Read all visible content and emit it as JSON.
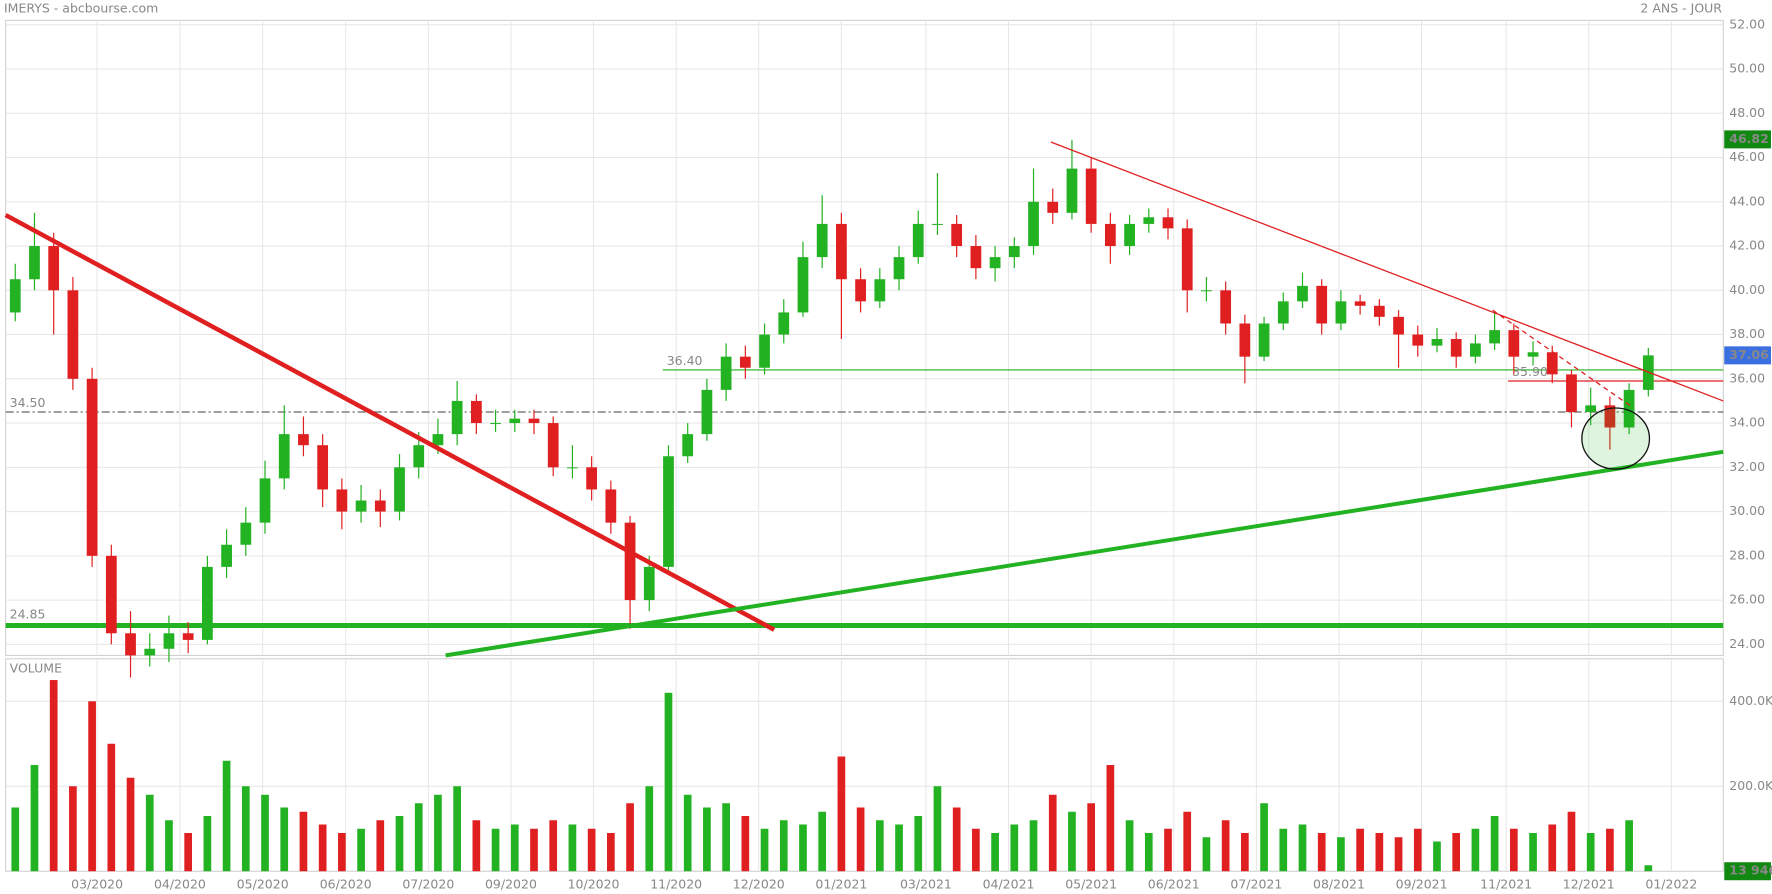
{
  "chart_data": {
    "type": "candlestick",
    "title": "IMERYS - abcbourse.com",
    "subtitle": "2 ANS - JOUR",
    "up_color": "#22b222",
    "down_color": "#e02020",
    "open": [
      39,
      40.5,
      42,
      40,
      36,
      28,
      24.5,
      23.5,
      23.8,
      24.5,
      24.2,
      27.5,
      28.5,
      29.5,
      31.5,
      33.5,
      33,
      31,
      30,
      30.5,
      30,
      32,
      33,
      33.5,
      35,
      34,
      34,
      34.2,
      34,
      32,
      32,
      31,
      29.5,
      26,
      27.5,
      32.5,
      33.5,
      35.5,
      37,
      36.5,
      38,
      39,
      41.5,
      43,
      40.5,
      39.5,
      40.5,
      41.5,
      43,
      43,
      42,
      41,
      41.5,
      42,
      44,
      43.5,
      45.5,
      43,
      42,
      43,
      43.3,
      42.8,
      40,
      40,
      38.5,
      37,
      38.5,
      39.5,
      40.2,
      38.5,
      39.5,
      39.3,
      38.8,
      38,
      37.5,
      37.8,
      37,
      37.6,
      38.2,
      37,
      37.2,
      36.2,
      34.5,
      34.8,
      33.8,
      35.5
    ],
    "high": [
      41.2,
      43.5,
      42.6,
      40.6,
      36.5,
      28.5,
      25.5,
      24.5,
      25.3,
      25,
      28,
      29.2,
      30.2,
      32.3,
      34.8,
      34.3,
      33.5,
      31.5,
      31.2,
      31,
      32.6,
      33.6,
      34.2,
      35.9,
      35.3,
      34.6,
      34.6,
      34.6,
      34.3,
      33,
      32.5,
      31.4,
      29.8,
      28,
      33,
      34,
      36,
      37.6,
      37.5,
      38.5,
      39.6,
      42.2,
      44.3,
      43.5,
      41,
      41,
      42,
      43.6,
      45.3,
      43.4,
      42.5,
      42,
      42.4,
      45.5,
      44.6,
      46.8,
      46,
      43.5,
      43.4,
      43.7,
      43.7,
      43.2,
      40.6,
      40.4,
      38.9,
      38.8,
      39.9,
      40.8,
      40.5,
      40,
      39.8,
      39.6,
      39.1,
      38.4,
      38.3,
      38.1,
      38,
      39,
      38.5,
      37.7,
      37.5,
      36.4,
      35.6,
      35.2,
      35.8,
      37.4
    ],
    "low": [
      38.6,
      40,
      38,
      35.5,
      27.5,
      24,
      22.5,
      23,
      23.2,
      23.6,
      24,
      27,
      28,
      29,
      31,
      32.5,
      30.2,
      29.2,
      29.5,
      29.3,
      29.6,
      31.5,
      32.6,
      33,
      33.5,
      33.6,
      33.6,
      33.5,
      31.6,
      31.5,
      30.5,
      29,
      24.7,
      25.5,
      27.3,
      32.2,
      33.2,
      35,
      36,
      36.2,
      37.6,
      38.8,
      41,
      37.8,
      39,
      39.2,
      40,
      41.2,
      42.5,
      41.5,
      40.5,
      40.4,
      41,
      41.6,
      43,
      43.2,
      42.6,
      41.2,
      41.6,
      42.6,
      42.3,
      39,
      39.5,
      38,
      35.8,
      36.8,
      38.2,
      39.2,
      38,
      38.2,
      38.9,
      38.4,
      36.5,
      37,
      37.2,
      36.5,
      36.7,
      37.3,
      36.2,
      36.6,
      35.8,
      33.8,
      33.9,
      32.8,
      33.5,
      35.2
    ],
    "close": [
      40.5,
      42,
      40,
      36,
      28,
      24.5,
      23.5,
      23.8,
      24.5,
      24.2,
      27.5,
      28.5,
      29.5,
      31.5,
      33.5,
      33,
      31,
      30,
      30.5,
      30,
      32,
      33,
      33.5,
      35,
      34,
      34,
      34.2,
      34,
      32,
      32,
      31,
      29.5,
      26,
      27.5,
      32.5,
      33.5,
      35.5,
      37,
      36.5,
      38,
      39,
      41.5,
      43,
      40.5,
      39.5,
      40.5,
      41.5,
      43,
      43,
      42,
      41,
      41.5,
      42,
      44,
      43.5,
      45.5,
      43,
      42,
      43,
      43.3,
      42.8,
      40,
      40,
      38.5,
      37,
      38.5,
      39.5,
      40.2,
      38.5,
      39.5,
      39.3,
      38.8,
      38,
      37.5,
      37.8,
      37,
      37.6,
      38.2,
      37,
      37.2,
      36.2,
      34.5,
      34.8,
      33.8,
      35.5,
      37.06
    ],
    "xlim": [
      -0.5,
      88.9
    ],
    "xticks": [
      {
        "value": 4.26,
        "label": "03/2020"
      },
      {
        "value": 8.57,
        "label": "04/2020"
      },
      {
        "value": 12.88,
        "label": "05/2020"
      },
      {
        "value": 17.2,
        "label": "06/2020"
      },
      {
        "value": 21.5,
        "label": "07/2020"
      },
      {
        "value": 25.8,
        "label": "09/2020"
      },
      {
        "value": 30.1,
        "label": "10/2020"
      },
      {
        "value": 34.4,
        "label": "11/2020"
      },
      {
        "value": 38.7,
        "label": "12/2020"
      },
      {
        "value": 43.0,
        "label": "01/2021"
      },
      {
        "value": 47.4,
        "label": "03/2021"
      },
      {
        "value": 51.7,
        "label": "04/2021"
      },
      {
        "value": 56.0,
        "label": "05/2021"
      },
      {
        "value": 60.3,
        "label": "06/2021"
      },
      {
        "value": 64.6,
        "label": "07/2021"
      },
      {
        "value": 68.9,
        "label": "08/2021"
      },
      {
        "value": 73.2,
        "label": "09/2021"
      },
      {
        "value": 77.6,
        "label": "11/2021"
      },
      {
        "value": 81.9,
        "label": "12/2021"
      },
      {
        "value": 86.2,
        "label": "01/2022"
      }
    ],
    "ylim": [
      23.5,
      52.2
    ],
    "yticks": [
      {
        "value": 24,
        "label": "24.00"
      },
      {
        "value": 26,
        "label": "26.00"
      },
      {
        "value": 28,
        "label": "28.00"
      },
      {
        "value": 30,
        "label": "30.00"
      },
      {
        "value": 32,
        "label": "32.00"
      },
      {
        "value": 34,
        "label": "34.00"
      },
      {
        "value": 36,
        "label": "36.00"
      },
      {
        "value": 38,
        "label": "38.00"
      },
      {
        "value": 40,
        "label": "40.00"
      },
      {
        "value": 42,
        "label": "42.00"
      },
      {
        "value": 44,
        "label": "44.00"
      },
      {
        "value": 46,
        "label": "46.00"
      },
      {
        "value": 48,
        "label": "48.00"
      },
      {
        "value": 50,
        "label": "50.00"
      },
      {
        "value": 52,
        "label": "52.00"
      }
    ],
    "grid": true,
    "levels": [
      {
        "value": 24.85,
        "label": "24.85",
        "from": -0.5,
        "color": "#22b222",
        "width": 5,
        "dash": "none"
      },
      {
        "value": {
          "value": 34.5,
          "label": "34.50"
        },
        "from": -0.5,
        "color": "#666666",
        "width": 1.2,
        "dash": "8 3 2 3"
      },
      {
        "value": {
          "value": 36.4,
          "label": "36.40"
        },
        "from": 33.7,
        "color": "#22b222",
        "width": 1.2,
        "dash": "none"
      },
      {
        "value": {
          "value": 35.9,
          "label": "35.90"
        },
        "from": 77.7,
        "color": "#e02020",
        "width": 1.2,
        "dash": "none"
      }
    ],
    "trendlines": [
      {
        "x0": -0.5,
        "y0": 43.4,
        "x1": 39.5,
        "y1": 24.66,
        "color": "#e02020",
        "width": 4.5,
        "dash": "none"
      },
      {
        "x0": 22.4,
        "y0": 23.5,
        "x1": 88.9,
        "y1": 32.7,
        "color": "#22b222",
        "width": 4,
        "dash": "none"
      },
      {
        "x0": 53.9,
        "y0": 46.7,
        "x1": 88.9,
        "y1": 35.0,
        "color": "#e02020",
        "width": 1.3,
        "dash": "none"
      },
      {
        "x0": 76.9,
        "y0": 39.1,
        "x1": 84.2,
        "y1": 34.7,
        "color": "#e02020",
        "width": 1.3,
        "dash": "5 4"
      }
    ],
    "highlight": {
      "x": 83.3,
      "y": 33.3,
      "rx": 1.76,
      "ry": 1.38,
      "color": "#22b222"
    },
    "price_tags": [
      {
        "value": 46.82,
        "color": "#118811"
      },
      {
        "value": 37.06,
        "color": "#3b6fe0"
      }
    ],
    "volume": {
      "label": "VOLUME",
      "label_color": "#22b222",
      "values": [
        150000,
        250000,
        450000,
        200000,
        400000,
        300000,
        220000,
        180000,
        120000,
        90000,
        130000,
        260000,
        200000,
        180000,
        150000,
        140000,
        110000,
        90000,
        100000,
        120000,
        130000,
        160000,
        180000,
        200000,
        120000,
        100000,
        110000,
        100000,
        120000,
        110000,
        100000,
        90000,
        160000,
        200000,
        420000,
        180000,
        150000,
        160000,
        130000,
        100000,
        120000,
        110000,
        140000,
        270000,
        150000,
        120000,
        110000,
        130000,
        200000,
        150000,
        100000,
        90000,
        110000,
        120000,
        180000,
        140000,
        160000,
        250000,
        120000,
        90000,
        100000,
        140000,
        80000,
        120000,
        90000,
        160000,
        100000,
        110000,
        90000,
        80000,
        100000,
        90000,
        80000,
        100000,
        70000,
        90000,
        100000,
        130000,
        100000,
        90000,
        110000,
        140000,
        90000,
        100000,
        120000,
        13946
      ],
      "value_labels_last": "13 946",
      "tag_color": "#118811",
      "ylim": [
        0,
        500000
      ],
      "yticks": [
        {
          "value": 200000,
          "label": "200.0K"
        },
        {
          "value": 400000,
          "label": "400.0K"
        }
      ]
    }
  }
}
